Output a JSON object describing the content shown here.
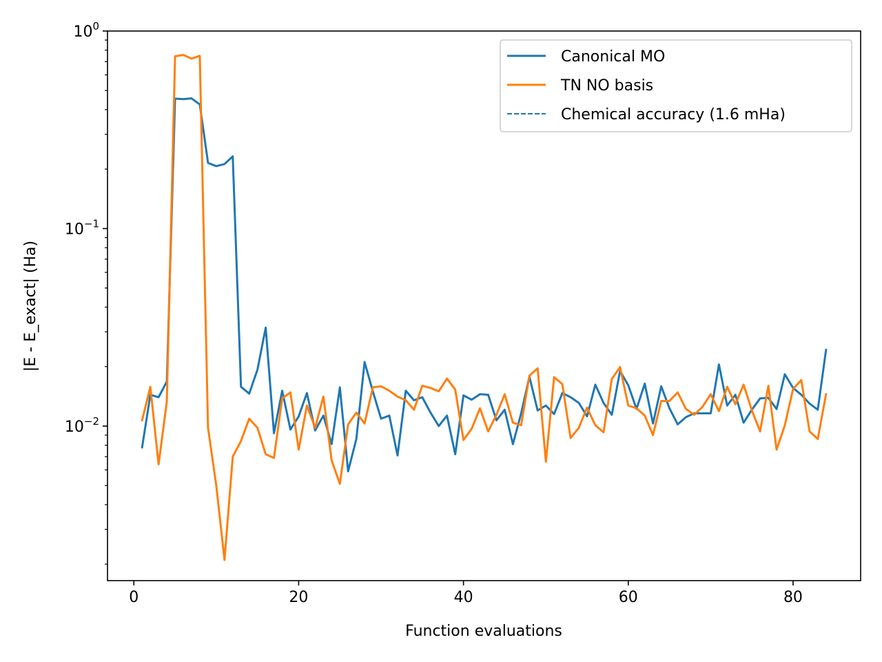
{
  "chart_data": {
    "type": "line",
    "xlabel": "Function evaluations",
    "ylabel": "|E - E_exact| (Ha)",
    "yscale": "log",
    "xlim": [
      -3.2,
      88.2
    ],
    "ylim": [
      0.00165,
      1.0
    ],
    "x_ticks": [
      0,
      20,
      40,
      60,
      80
    ],
    "x_tick_labels": [
      "0",
      "20",
      "40",
      "60",
      "80"
    ],
    "y_ticks": [
      {
        "value": 1.0,
        "base": "10",
        "exp": "0"
      },
      {
        "value": 0.1,
        "base": "10",
        "exp": "−1"
      },
      {
        "value": 0.01,
        "base": "10",
        "exp": "−2"
      }
    ],
    "x": [
      1,
      2,
      3,
      4,
      5,
      6,
      7,
      8,
      9,
      10,
      11,
      12,
      13,
      14,
      15,
      16,
      17,
      18,
      19,
      20,
      21,
      22,
      23,
      24,
      25,
      26,
      27,
      28,
      29,
      30,
      31,
      32,
      33,
      34,
      35,
      36,
      37,
      38,
      39,
      40,
      41,
      42,
      43,
      44,
      45,
      46,
      47,
      48,
      49,
      50,
      51,
      52,
      53,
      54,
      55,
      56,
      57,
      58,
      59,
      60,
      61,
      62,
      63,
      64,
      65,
      66,
      67,
      68,
      69,
      70,
      71,
      72,
      73,
      74,
      75,
      76,
      77,
      78,
      79,
      80,
      81,
      82,
      83,
      84
    ],
    "series": [
      {
        "name": "Canonical MO",
        "color": "#1f77b4",
        "style": "solid",
        "values": [
          0.0078,
          0.0144,
          0.014,
          0.0168,
          0.455,
          0.452,
          0.456,
          0.425,
          0.215,
          0.207,
          0.212,
          0.232,
          0.0158,
          0.0146,
          0.0193,
          0.0315,
          0.0092,
          0.0151,
          0.0096,
          0.0112,
          0.0147,
          0.0095,
          0.0113,
          0.0081,
          0.0157,
          0.0059,
          0.0086,
          0.0211,
          0.015,
          0.0109,
          0.0113,
          0.0071,
          0.0151,
          0.0135,
          0.014,
          0.0117,
          0.01,
          0.0113,
          0.0072,
          0.0143,
          0.0136,
          0.0145,
          0.0144,
          0.0107,
          0.0121,
          0.0081,
          0.0116,
          0.0178,
          0.012,
          0.0127,
          0.0115,
          0.0147,
          0.014,
          0.0131,
          0.0112,
          0.0162,
          0.0131,
          0.0114,
          0.019,
          0.0161,
          0.0122,
          0.0164,
          0.0103,
          0.0159,
          0.0123,
          0.0102,
          0.0111,
          0.0116,
          0.0116,
          0.0116,
          0.0205,
          0.0127,
          0.0144,
          0.0104,
          0.0121,
          0.0138,
          0.0139,
          0.0122,
          0.0183,
          0.0156,
          0.0144,
          0.013,
          0.0121,
          0.0243
        ]
      },
      {
        "name": "TN NO basis",
        "color": "#ff7f0e",
        "style": "solid",
        "values": [
          0.0107,
          0.0158,
          0.0064,
          0.0133,
          0.745,
          0.757,
          0.725,
          0.749,
          0.0098,
          0.005,
          0.0021,
          0.007,
          0.0084,
          0.0109,
          0.0098,
          0.0072,
          0.0069,
          0.0138,
          0.0148,
          0.0076,
          0.0127,
          0.0098,
          0.0141,
          0.0067,
          0.0051,
          0.0102,
          0.0117,
          0.0103,
          0.0157,
          0.0159,
          0.0151,
          0.0141,
          0.0135,
          0.0121,
          0.016,
          0.0156,
          0.015,
          0.0174,
          0.0153,
          0.0085,
          0.0097,
          0.0123,
          0.0094,
          0.0114,
          0.0145,
          0.0104,
          0.0101,
          0.018,
          0.0196,
          0.0066,
          0.0177,
          0.0163,
          0.0087,
          0.0098,
          0.0124,
          0.0101,
          0.0093,
          0.0173,
          0.0199,
          0.0127,
          0.0123,
          0.0113,
          0.009,
          0.0134,
          0.0134,
          0.0148,
          0.0122,
          0.0114,
          0.0125,
          0.0145,
          0.0119,
          0.0158,
          0.0129,
          0.0162,
          0.012,
          0.0094,
          0.016,
          0.0076,
          0.0101,
          0.0154,
          0.0171,
          0.0094,
          0.0086,
          0.0145
        ]
      }
    ],
    "reference_line": {
      "name": "Chemical accuracy (1.6 mHa)",
      "color": "#1f77b4",
      "style": "dashed",
      "value": 0.0016
    },
    "legend": {
      "placement": "top-right",
      "entries": [
        "Canonical MO",
        "TN NO basis",
        "Chemical accuracy (1.6 mHa)"
      ]
    },
    "grid": false
  }
}
